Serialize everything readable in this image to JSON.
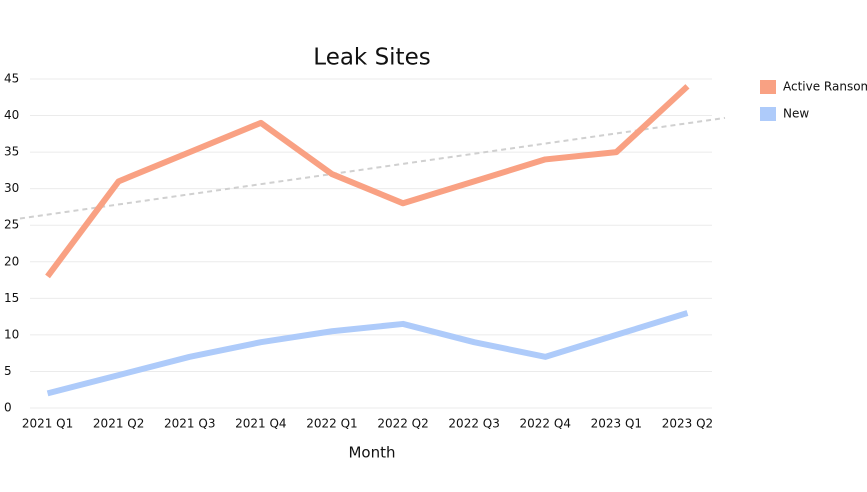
{
  "chart_data": {
    "type": "line",
    "title": "Leak Sites",
    "x_label": "Month",
    "categories": [
      "2021 Q1",
      "2021 Q2",
      "2021 Q3",
      "2021 Q4",
      "2022 Q1",
      "2022 Q2",
      "2022 Q3",
      "2022 Q4",
      "2023 Q1",
      "2023 Q2"
    ],
    "series": [
      {
        "name": "Active Ransom",
        "color": "#f9a183",
        "values": [
          18,
          31,
          35,
          39,
          32,
          28,
          31,
          34,
          35,
          44
        ]
      },
      {
        "name": "New",
        "color": "#aecbfa",
        "values": [
          2,
          4.5,
          7,
          9,
          10.5,
          11.5,
          9,
          7,
          10,
          13
        ]
      }
    ],
    "ylim": [
      0,
      45
    ],
    "yticks": [
      0,
      5,
      10,
      15,
      20,
      25,
      30,
      35,
      40,
      45
    ],
    "grid": true,
    "trendline": true
  }
}
